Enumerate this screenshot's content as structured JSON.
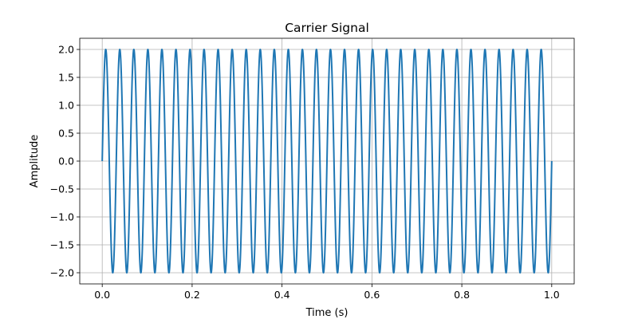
{
  "chart_data": {
    "type": "line",
    "title": "Carrier Signal",
    "xlabel": "Time (s)",
    "ylabel": "Amplitude",
    "xlim": [
      -0.05,
      1.05
    ],
    "ylim": [
      -2.2,
      2.2
    ],
    "x_ticks": [
      0.0,
      0.2,
      0.4,
      0.6,
      0.8,
      1.0
    ],
    "x_tick_labels": [
      "0.0",
      "0.2",
      "0.4",
      "0.6",
      "0.8",
      "1.0"
    ],
    "y_ticks": [
      -2.0,
      -1.5,
      -1.0,
      -0.5,
      0.0,
      0.5,
      1.0,
      1.5,
      2.0
    ],
    "y_tick_labels": [
      "−2.0",
      "−1.5",
      "−1.0",
      "−0.5",
      "0.0",
      "0.5",
      "1.0",
      "1.5",
      "2.0"
    ],
    "grid": true,
    "series": [
      {
        "function": "2*sin(2*pi*32*t)",
        "amplitude": 2.0,
        "frequency_hz": 32,
        "x_range": [
          0.0,
          1.0
        ],
        "color": "#1f77b4"
      }
    ]
  }
}
